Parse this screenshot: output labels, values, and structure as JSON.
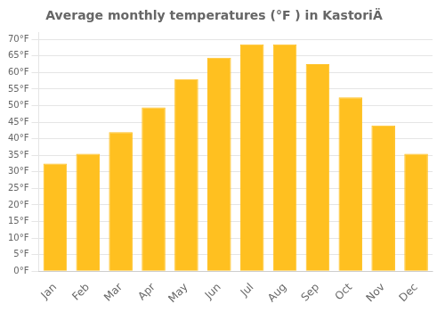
{
  "chart_data": {
    "type": "bar",
    "title": "Average monthly temperatures (°F ) in KastoriÄ",
    "categories": [
      "Jan",
      "Feb",
      "Mar",
      "Apr",
      "May",
      "Jun",
      "Jul",
      "Aug",
      "Sep",
      "Oct",
      "Nov",
      "Dec"
    ],
    "values": [
      32.5,
      35.5,
      42.0,
      49.5,
      58.0,
      64.5,
      68.5,
      68.5,
      62.5,
      52.5,
      44.0,
      35.5
    ],
    "color": "#FFC020",
    "ylim": [
      0,
      72
    ],
    "yticks": [
      {
        "value": 0,
        "label": "0°F"
      },
      {
        "value": 5,
        "label": "5°F"
      },
      {
        "value": 10,
        "label": "10°F"
      },
      {
        "value": 15,
        "label": "15°F"
      },
      {
        "value": 20,
        "label": "20°F"
      },
      {
        "value": 25,
        "label": "25°F"
      },
      {
        "value": 30,
        "label": "30°F"
      },
      {
        "value": 35,
        "label": "35°F"
      },
      {
        "value": 40,
        "label": "40°F"
      },
      {
        "value": 45,
        "label": "45°F"
      },
      {
        "value": 50,
        "label": "50°F"
      },
      {
        "value": 55,
        "label": "55°F"
      },
      {
        "value": 60,
        "label": "60°F"
      },
      {
        "value": 65,
        "label": "65°F"
      },
      {
        "value": 70,
        "label": "70°F"
      }
    ],
    "grid": true
  }
}
